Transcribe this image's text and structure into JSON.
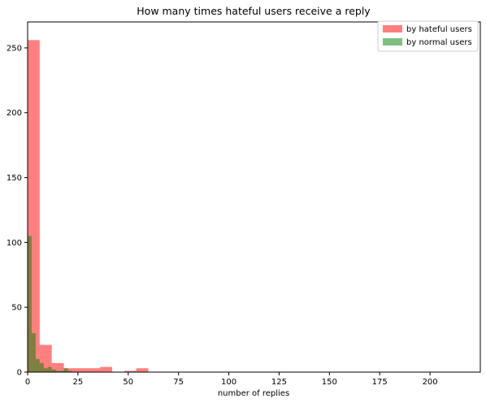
{
  "chart_data": {
    "type": "bar",
    "title": "How many times hateful users receive a reply",
    "xlabel": "number of replies",
    "ylabel": "",
    "xlim": [
      0,
      225
    ],
    "ylim": [
      0,
      270
    ],
    "xticks": [
      0,
      25,
      50,
      75,
      100,
      125,
      150,
      175,
      200
    ],
    "yticks": [
      0,
      50,
      100,
      150,
      200,
      250
    ],
    "legend_position": "top-right",
    "grid": false,
    "series": [
      {
        "name": "by hateful users",
        "color": "#ff0000",
        "opacity": 0.5,
        "bins": [
          {
            "x0": 0,
            "x1": 6,
            "value": 256
          },
          {
            "x0": 6,
            "x1": 12,
            "value": 21
          },
          {
            "x0": 12,
            "x1": 18,
            "value": 7
          },
          {
            "x0": 18,
            "x1": 24,
            "value": 3
          },
          {
            "x0": 24,
            "x1": 30,
            "value": 3
          },
          {
            "x0": 30,
            "x1": 36,
            "value": 3
          },
          {
            "x0": 36,
            "x1": 42,
            "value": 4
          },
          {
            "x0": 42,
            "x1": 48,
            "value": 0
          },
          {
            "x0": 48,
            "x1": 54,
            "value": 1
          },
          {
            "x0": 54,
            "x1": 60,
            "value": 3
          }
        ]
      },
      {
        "name": "by normal users",
        "color": "#008000",
        "opacity": 0.5,
        "bins": [
          {
            "x0": 0,
            "x1": 2,
            "value": 105
          },
          {
            "x0": 2,
            "x1": 4,
            "value": 30
          },
          {
            "x0": 4,
            "x1": 6,
            "value": 10
          },
          {
            "x0": 6,
            "x1": 8,
            "value": 7
          },
          {
            "x0": 8,
            "x1": 10,
            "value": 3
          },
          {
            "x0": 10,
            "x1": 12,
            "value": 4
          },
          {
            "x0": 12,
            "x1": 14,
            "value": 2
          },
          {
            "x0": 14,
            "x1": 16,
            "value": 1
          },
          {
            "x0": 16,
            "x1": 18,
            "value": 1
          },
          {
            "x0": 18,
            "x1": 20,
            "value": 3
          },
          {
            "x0": 20,
            "x1": 22,
            "value": 1
          }
        ]
      }
    ]
  }
}
